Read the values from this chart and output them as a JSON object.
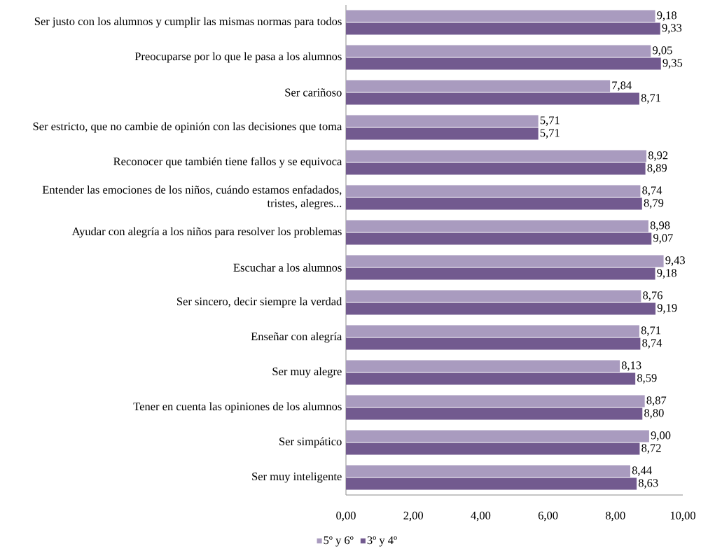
{
  "chart_data": {
    "type": "bar",
    "orientation": "horizontal",
    "categories": [
      "Ser justo con los alumnos y cumplir las mismas normas para todos",
      "Preocuparse por lo que le pasa a los alumnos",
      "Ser cariñoso",
      "Ser estricto, que no cambie de opinión con las decisiones que toma",
      "Reconocer que también tiene fallos y se equivoca",
      "Entender las emociones de los niños, cuándo estamos enfadados, tristes, alegres...",
      "Ayudar con alegría a los niños para resolver los problemas",
      "Escuchar a los alumnos",
      "Ser sincero, decir siempre la verdad",
      "Enseñar con alegría",
      "Ser muy alegre",
      "Tener en cuenta las opiniones de los alumnos",
      "Ser simpático",
      "Ser muy inteligente"
    ],
    "series": [
      {
        "name": "5º y 6º",
        "color": "#a99bbf",
        "values": [
          9.18,
          9.05,
          7.84,
          5.71,
          8.92,
          8.74,
          8.98,
          9.43,
          8.76,
          8.71,
          8.13,
          8.87,
          9.0,
          8.44
        ],
        "value_labels": [
          "9,18",
          "9,05",
          "7,84",
          "5,71",
          "8,92",
          "8,74",
          "8,98",
          "9,43",
          "8,76",
          "8,71",
          "8,13",
          "8,87",
          "9,00",
          "8,44"
        ]
      },
      {
        "name": "3º y 4º",
        "color": "#725a8f",
        "values": [
          9.33,
          9.35,
          8.71,
          5.71,
          8.89,
          8.79,
          9.07,
          9.18,
          9.19,
          8.74,
          8.59,
          8.8,
          8.72,
          8.63
        ],
        "value_labels": [
          "9,33",
          "9,35",
          "8,71",
          "5,71",
          "8,89",
          "8,79",
          "9,07",
          "9,18",
          "9,19",
          "8,74",
          "8,59",
          "8,80",
          "8,72",
          "8,63"
        ]
      }
    ],
    "xlim": [
      0,
      10
    ],
    "xticks": [
      {
        "value": 0,
        "label": "0,00"
      },
      {
        "value": 2,
        "label": "2,00"
      },
      {
        "value": 4,
        "label": "4,00"
      },
      {
        "value": 6,
        "label": "6,00"
      },
      {
        "value": 8,
        "label": "8,00"
      },
      {
        "value": 10,
        "label": "10,00"
      }
    ],
    "legend": "bottom"
  }
}
